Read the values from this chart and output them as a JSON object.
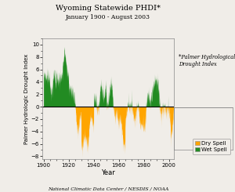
{
  "title": "Wyoming Statewide PHDI*",
  "subtitle": "January 1900 - August 2003",
  "xlabel": "Year",
  "ylabel": "Palmer Hydrologic Drought Index",
  "footnote": "*Palmer Hydrological\nDrought Index",
  "credit": "National Climatic Data Center / NESDIS / NOAA",
  "ylim": [
    -8.5,
    11.0
  ],
  "xlim": [
    1899,
    2004
  ],
  "yticks": [
    -8.0,
    -6.0,
    -4.0,
    -2.0,
    0.0,
    2.0,
    4.0,
    6.0,
    8.0,
    10.0
  ],
  "xticks": [
    1900,
    1920,
    1940,
    1960,
    1980,
    2000
  ],
  "dry_color": "#FFA500",
  "wet_color": "#228B22",
  "zero_line_color": "black",
  "background_color": "#f0ede8",
  "legend_dry": "Dry Spell",
  "legend_wet": "Wet Spell",
  "start_year": 1900,
  "end_year": 2003,
  "end_month": 8
}
